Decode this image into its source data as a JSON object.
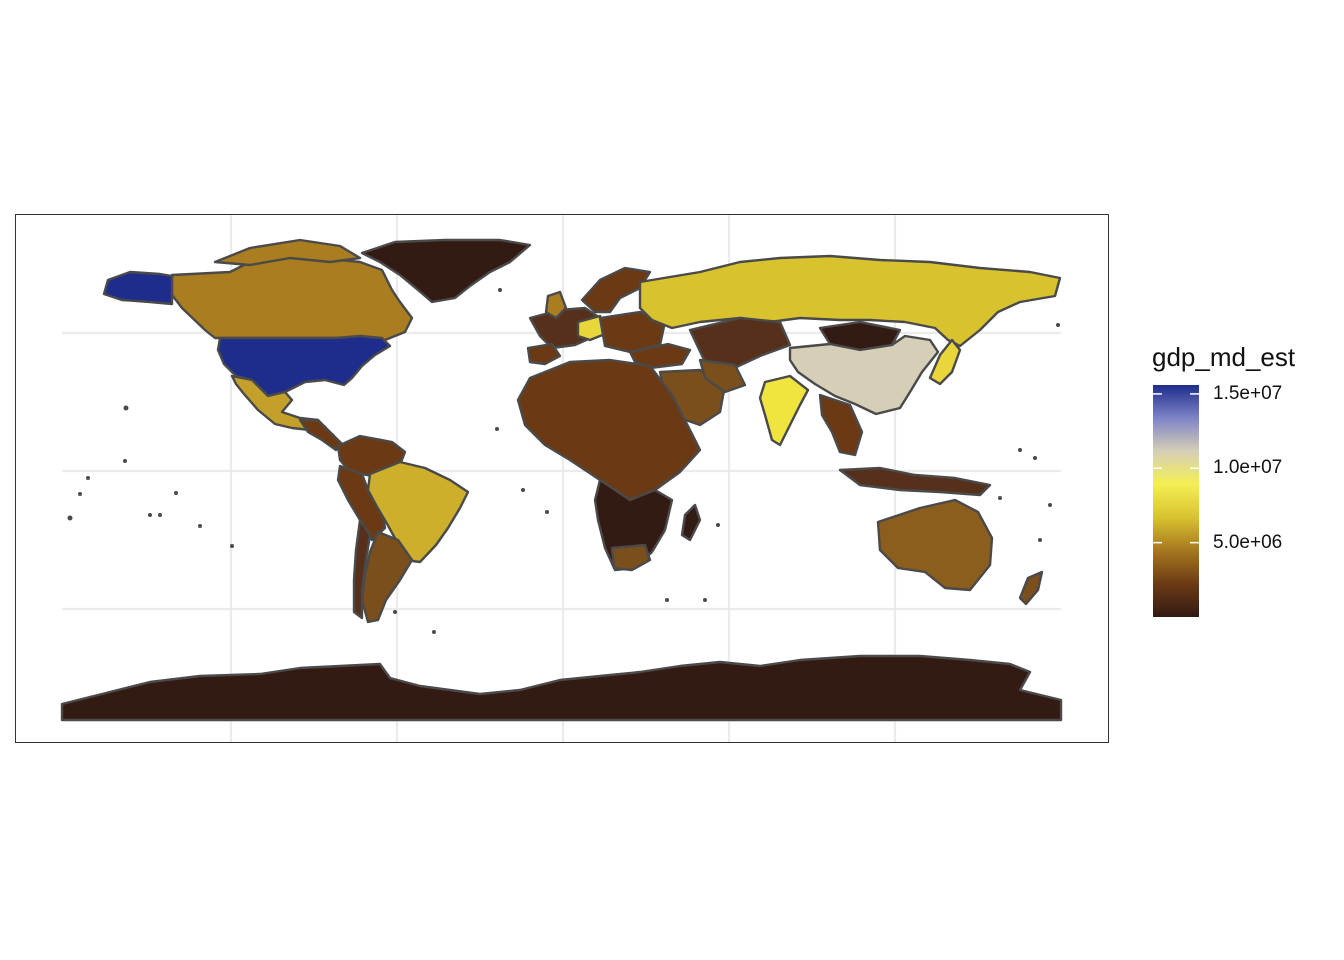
{
  "legend": {
    "title": "gdp_md_est",
    "scale_colors": [
      "#331a12",
      "#6b3a15",
      "#a7771f",
      "#d8c22e",
      "#f4ef52",
      "#d6cfb8",
      "#7f84c6",
      "#1e2d8c"
    ],
    "breaks": [
      {
        "value": 15000000,
        "label": "1.5e+07"
      },
      {
        "value": 10000000,
        "label": "1.0e+07"
      },
      {
        "value": 5000000,
        "label": "5.0e+06"
      }
    ],
    "min": 0,
    "max": 15600000
  },
  "colors": {
    "usa": "#1e2d8c",
    "china": "#d6cfb8",
    "india": "#f0e53e",
    "russia": "#d8c22e",
    "brazil": "#cdaf2c",
    "japan": "#e8d63a",
    "germany": "#e8d63a",
    "canada": "#a97d20",
    "mexico": "#c2a02a",
    "australia": "#8c5e1e",
    "argentina": "#7a4f1c",
    "low": "#331a12",
    "lowmid": "#56301a",
    "mid": "#6b3a15",
    "outline": "#4a4a4a",
    "grid": "#ebebeb"
  }
}
